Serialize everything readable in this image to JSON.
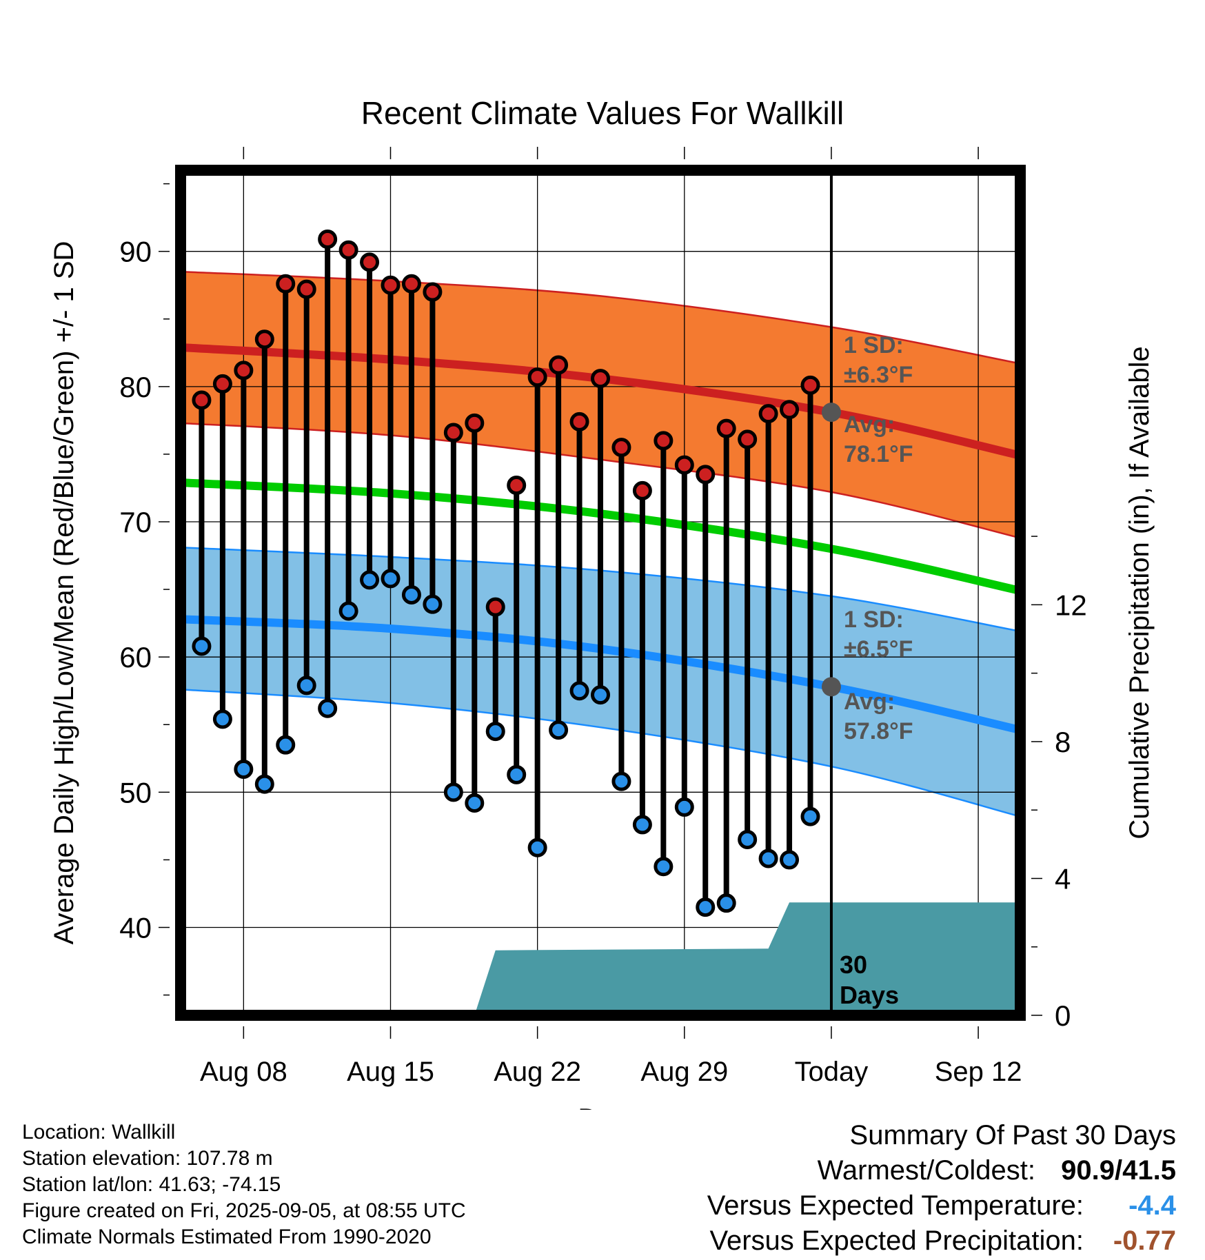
{
  "chart_data": {
    "type": "line",
    "title": "Recent Climate Values For Wallkill",
    "xlabel": "Day",
    "ylabel": "Average Daily High/Low/Mean (Red/Blue/Green) +/- 1 SD",
    "y2label": "Cumulative Precipitation (in), If Available",
    "x_tick_labels": [
      "Aug 08",
      "Aug 15",
      "Aug 22",
      "Aug 29",
      "Today",
      "Sep 12"
    ],
    "y_ticks": [
      40,
      50,
      60,
      70,
      80,
      90
    ],
    "y2_ticks": [
      0,
      4,
      8,
      12
    ],
    "ylim": [
      33.5,
      96
    ],
    "y2lim": [
      0,
      24.7
    ],
    "x_start": "2025-08-05",
    "x_end": "2025-09-14",
    "today": "2025-09-05",
    "today_label": "30 Days",
    "daily_obs": {
      "dates": [
        "2025-08-06",
        "2025-08-07",
        "2025-08-08",
        "2025-08-09",
        "2025-08-10",
        "2025-08-11",
        "2025-08-12",
        "2025-08-13",
        "2025-08-14",
        "2025-08-15",
        "2025-08-16",
        "2025-08-17",
        "2025-08-18",
        "2025-08-19",
        "2025-08-20",
        "2025-08-21",
        "2025-08-22",
        "2025-08-23",
        "2025-08-24",
        "2025-08-25",
        "2025-08-26",
        "2025-08-27",
        "2025-08-28",
        "2025-08-29",
        "2025-08-30",
        "2025-08-31",
        "2025-09-01",
        "2025-09-02",
        "2025-09-03",
        "2025-09-04"
      ],
      "highs": [
        79.0,
        80.2,
        81.2,
        83.5,
        87.6,
        87.2,
        90.9,
        90.1,
        89.2,
        87.5,
        87.6,
        87.0,
        76.6,
        77.3,
        63.7,
        72.7,
        80.7,
        81.6,
        77.4,
        80.6,
        75.5,
        72.3,
        76.0,
        74.2,
        73.5,
        76.9,
        76.1,
        78.0,
        78.3,
        80.1
      ],
      "lows": [
        60.8,
        55.4,
        51.7,
        50.6,
        53.5,
        57.9,
        56.2,
        63.4,
        65.7,
        65.8,
        64.6,
        63.9,
        50.0,
        49.2,
        54.5,
        51.3,
        45.9,
        54.6,
        57.5,
        57.2,
        50.8,
        47.6,
        44.5,
        48.9,
        41.5,
        41.8,
        46.5,
        45.1,
        45.0,
        48.2
      ]
    },
    "normals": {
      "dates": [
        "2025-08-05",
        "2025-08-15",
        "2025-08-25",
        "2025-09-05",
        "2025-09-14"
      ],
      "avg_high": [
        82.9,
        82.0,
        80.6,
        78.1,
        74.9
      ],
      "avg_high_upper": [
        88.5,
        87.8,
        86.7,
        84.4,
        81.7
      ],
      "avg_high_lower": [
        77.3,
        76.4,
        74.6,
        72.2,
        68.8
      ],
      "avg_mean": [
        72.9,
        72.1,
        70.6,
        68.0,
        64.9
      ],
      "avg_low": [
        62.8,
        62.1,
        60.6,
        57.8,
        54.6
      ],
      "avg_low_upper": [
        68.1,
        67.4,
        66.4,
        64.5,
        61.9
      ],
      "avg_low_lower": [
        57.6,
        56.6,
        54.8,
        51.9,
        48.2
      ]
    },
    "precip_cumulative": {
      "dates": [
        "2025-08-05",
        "2025-08-19",
        "2025-08-20",
        "2025-09-02",
        "2025-09-03",
        "2025-09-14"
      ],
      "values": [
        0,
        0,
        1.9,
        1.95,
        3.3,
        3.3
      ]
    },
    "annotations": {
      "high_sd_label": "1 SD:",
      "high_sd_value": "±6.3°F",
      "high_avg_label": "Avg:",
      "high_avg_value": "78.1°F",
      "low_sd_label": "1 SD:",
      "low_sd_value": "±6.5°F",
      "low_avg_label": "Avg:",
      "low_avg_value": "57.8°F",
      "high_avg_today": 78.1,
      "low_avg_today": 57.8
    },
    "colors": {
      "high_band": "#f47a30",
      "high_line": "#cc2020",
      "mean_line": "#00cc00",
      "low_band": "#82c0e6",
      "low_line": "#1a8cff",
      "precip": "#4a9aa4",
      "high_dot": "#cc2020",
      "low_dot": "#2a90e8",
      "annotation": "#555555"
    }
  },
  "info": {
    "location": "Location: Wallkill",
    "elevation": "Station elevation: 107.78 m",
    "latlon": "Station lat/lon: 41.63; -74.15",
    "created": "Figure created on Fri, 2025-09-05, at 08:55 UTC",
    "normals": "Climate Normals Estimated From 1990-2020"
  },
  "summary": {
    "title": "Summary Of Past 30 Days",
    "warm_cold_label": "Warmest/Coldest:",
    "warm_cold_value": "90.9/41.5",
    "temp_label": "Versus Expected Temperature:",
    "temp_value": "-4.4",
    "temp_color": "#2a90e8",
    "precip_label": "Versus Expected Precipitation:",
    "precip_value": "-0.77",
    "precip_color": "#a0522d"
  }
}
